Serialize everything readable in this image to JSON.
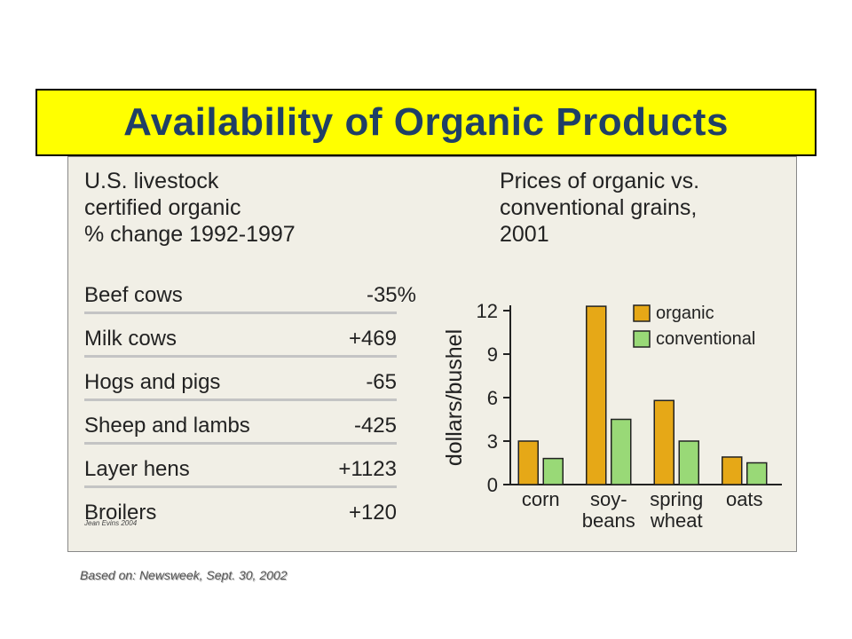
{
  "title": "Availability of Organic Products",
  "livestock": {
    "heading_lines": [
      "U.S. livestock",
      "certified organic",
      "% change 1992-1997"
    ],
    "rows": [
      {
        "label": "Beef cows",
        "value": "-35%"
      },
      {
        "label": "Milk cows",
        "value": "+469"
      },
      {
        "label": "Hogs and pigs",
        "value": "-65"
      },
      {
        "label": "Sheep and lambs",
        "value": "-425"
      },
      {
        "label": "Layer hens",
        "value": "+1123"
      },
      {
        "label": "Broilers",
        "value": "+120"
      }
    ],
    "signature": "Jean Evins 2004"
  },
  "source_note": "Based on: Newsweek, Sept. 30, 2002",
  "colors": {
    "organic": "#e6a817",
    "conventional": "#99d977",
    "title_bg": "#ffff00",
    "title_text": "#1f3f66"
  },
  "chart_data": {
    "type": "bar",
    "title": "Prices of organic vs. conventional grains, 2001",
    "title_lines": [
      "Prices of organic vs.",
      "conventional grains,",
      "2001"
    ],
    "categories": [
      "corn",
      "soybeans",
      "spring wheat",
      "oats"
    ],
    "category_label_lines": [
      [
        "corn"
      ],
      [
        "soy-",
        "beans"
      ],
      [
        "spring",
        "wheat"
      ],
      [
        "oats"
      ]
    ],
    "series": [
      {
        "name": "organic",
        "values": [
          3.0,
          12.3,
          5.8,
          1.9
        ]
      },
      {
        "name": "conventional",
        "values": [
          1.8,
          4.5,
          3.0,
          1.5
        ]
      }
    ],
    "ylabel": "dollars/bushel",
    "xlabel": "",
    "ylim": [
      0,
      12
    ],
    "yticks": [
      0,
      3,
      6,
      9,
      12
    ],
    "legend_position": "top-right",
    "grid": false
  }
}
